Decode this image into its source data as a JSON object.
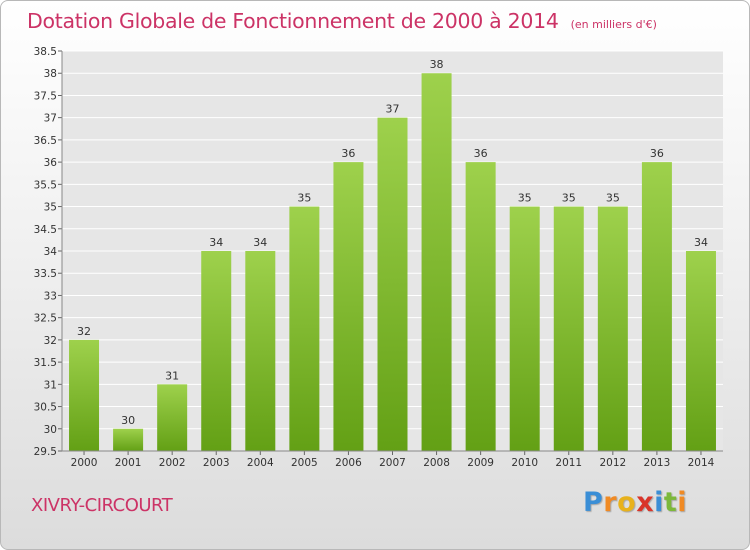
{
  "chart_data": {
    "type": "bar",
    "title": "Dotation Globale de Fonctionnement de 2000 à 2014",
    "subtitle": "(en milliers d'€)",
    "categories": [
      "2000",
      "2001",
      "2002",
      "2003",
      "2004",
      "2005",
      "2006",
      "2007",
      "2008",
      "2009",
      "2010",
      "2011",
      "2012",
      "2013",
      "2014"
    ],
    "values": [
      32,
      30,
      31,
      34,
      34,
      35,
      36,
      37,
      38,
      36,
      35,
      35,
      35,
      36,
      34
    ],
    "data_labels": [
      "32",
      "30",
      "31",
      "34",
      "34",
      "35",
      "36",
      "37",
      "38",
      "36",
      "35",
      "35",
      "35",
      "36",
      "34"
    ],
    "ylim": [
      29.5,
      38.5
    ],
    "yticks": [
      "29.5",
      "30",
      "30.5",
      "31",
      "31.5",
      "32",
      "32.5",
      "33",
      "33.5",
      "34",
      "34.5",
      "35",
      "35.5",
      "36",
      "36.5",
      "37",
      "37.5",
      "38",
      "38.5"
    ],
    "grid": true,
    "xlabel": "",
    "ylabel": "",
    "colors": {
      "bar_top": "#9ed14c",
      "bar_bottom": "#63a015",
      "grid": "#ffffff",
      "title": "#cc3366"
    }
  },
  "footer": {
    "commune": "XIVRY-CIRCOURT",
    "logo_letters": [
      "P",
      "r",
      "o",
      "x",
      "i",
      "t",
      "i"
    ],
    "logo_colors": [
      "#3a8ed6",
      "#f08a24",
      "#e8b21c",
      "#d9352a",
      "#3a8ed6",
      "#7cb83a",
      "#f08a24"
    ]
  }
}
